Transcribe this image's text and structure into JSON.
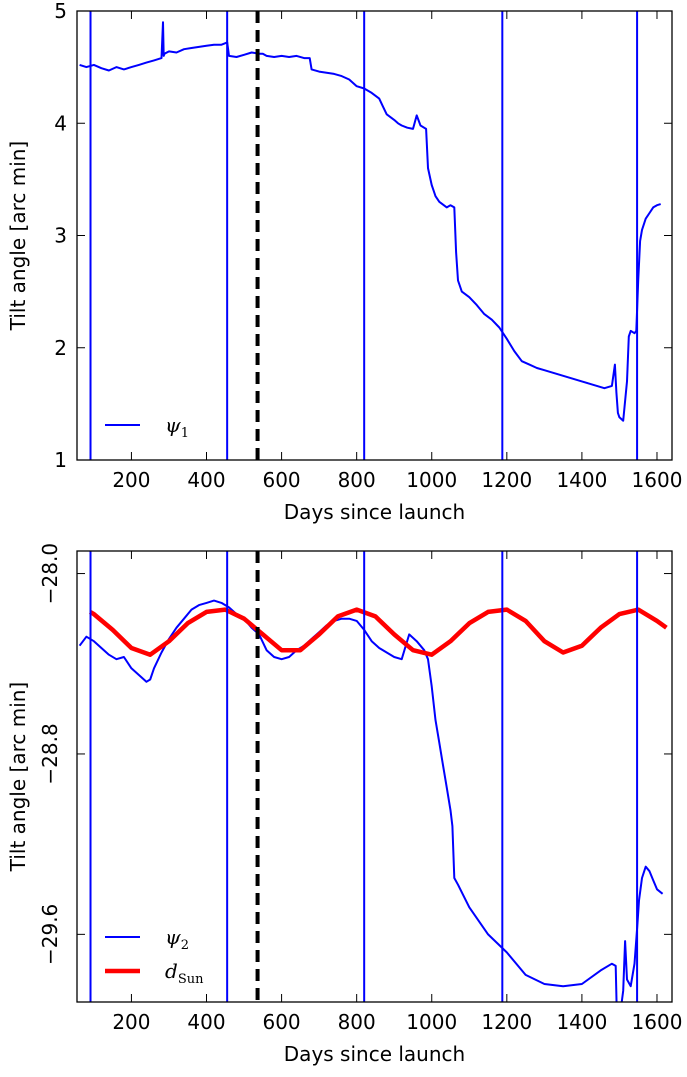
{
  "chart_data": [
    {
      "type": "line",
      "xlabel": "Days since launch",
      "ylabel": "Tilt angle [arc min]",
      "xlim": [
        55,
        1640
      ],
      "ylim": [
        1,
        5
      ],
      "xticks": [
        200,
        400,
        600,
        800,
        1000,
        1200,
        1400,
        1600
      ],
      "yticks": [
        1,
        2,
        3,
        4,
        5
      ],
      "xtick_labels": [
        "200",
        "400",
        "600",
        "800",
        "1000",
        "1200",
        "1400",
        "1600"
      ],
      "ytick_labels": [
        "1",
        "2",
        "3",
        "4",
        "5"
      ],
      "grid": false,
      "legend_position": "lower-left",
      "vertical_lines": {
        "blue": [
          91,
          455,
          820,
          1188,
          1547
        ],
        "dashed_black": [
          536
        ]
      },
      "series": [
        {
          "name": "ψ1",
          "color": "#0000ff",
          "x": [
            62,
            80,
            100,
            120,
            140,
            160,
            180,
            200,
            220,
            240,
            260,
            280,
            284,
            286,
            288,
            300,
            320,
            340,
            360,
            380,
            400,
            420,
            440,
            455,
            460,
            480,
            500,
            520,
            540,
            550,
            560,
            580,
            600,
            620,
            640,
            660,
            675,
            680,
            700,
            720,
            740,
            760,
            780,
            800,
            820,
            840,
            860,
            870,
            880,
            900,
            910,
            920,
            935,
            950,
            960,
            970,
            985,
            990,
            1000,
            1005,
            1010,
            1020,
            1040,
            1050,
            1060,
            1065,
            1070,
            1080,
            1100,
            1120,
            1140,
            1160,
            1180,
            1200,
            1220,
            1240,
            1260,
            1280,
            1300,
            1320,
            1340,
            1360,
            1380,
            1400,
            1420,
            1440,
            1460,
            1480,
            1488,
            1492,
            1496,
            1500,
            1510,
            1520,
            1525,
            1530,
            1540,
            1545,
            1550,
            1555,
            1560,
            1570,
            1580,
            1590,
            1600,
            1610
          ],
          "values": [
            4.52,
            4.5,
            4.52,
            4.49,
            4.47,
            4.5,
            4.48,
            4.5,
            4.52,
            4.54,
            4.56,
            4.58,
            4.9,
            4.6,
            4.62,
            4.64,
            4.63,
            4.66,
            4.67,
            4.68,
            4.69,
            4.7,
            4.7,
            4.72,
            4.6,
            4.59,
            4.61,
            4.63,
            4.62,
            4.62,
            4.6,
            4.59,
            4.6,
            4.59,
            4.6,
            4.58,
            4.58,
            4.48,
            4.46,
            4.45,
            4.44,
            4.42,
            4.39,
            4.33,
            4.31,
            4.27,
            4.22,
            4.15,
            4.08,
            4.03,
            4.0,
            3.98,
            3.96,
            3.95,
            4.07,
            3.98,
            3.95,
            3.6,
            3.45,
            3.4,
            3.35,
            3.3,
            3.25,
            3.27,
            3.25,
            2.85,
            2.6,
            2.5,
            2.45,
            2.38,
            2.3,
            2.25,
            2.18,
            2.08,
            1.97,
            1.88,
            1.85,
            1.82,
            1.8,
            1.78,
            1.76,
            1.74,
            1.72,
            1.7,
            1.68,
            1.66,
            1.64,
            1.66,
            1.85,
            1.6,
            1.42,
            1.38,
            1.35,
            1.7,
            2.1,
            2.15,
            2.13,
            2.15,
            2.6,
            2.95,
            3.05,
            3.15,
            3.2,
            3.25,
            3.27,
            3.28
          ]
        }
      ]
    },
    {
      "type": "line",
      "xlabel": "Days since launch",
      "ylabel": "Tilt angle [arc min]",
      "xlim": [
        55,
        1640
      ],
      "ylim": [
        -29.9,
        -27.9
      ],
      "xticks": [
        200,
        400,
        600,
        800,
        1000,
        1200,
        1400,
        1600
      ],
      "yticks": [
        -28.0,
        -28.8,
        -29.6
      ],
      "xtick_labels": [
        "200",
        "400",
        "600",
        "800",
        "1000",
        "1200",
        "1400",
        "1600"
      ],
      "ytick_labels": [
        "−28.0",
        "−28.8",
        "−29.6"
      ],
      "grid": false,
      "legend_position": "lower-left",
      "vertical_lines": {
        "blue": [
          91,
          455,
          820,
          1188,
          1547
        ],
        "dashed_black": [
          536
        ]
      },
      "series": [
        {
          "name": "ψ2",
          "color": "#0000ff",
          "x": [
            62,
            80,
            100,
            120,
            140,
            160,
            180,
            200,
            220,
            240,
            250,
            260,
            280,
            300,
            320,
            340,
            360,
            380,
            400,
            420,
            440,
            460,
            480,
            500,
            520,
            540,
            560,
            580,
            600,
            620,
            640,
            660,
            680,
            700,
            720,
            740,
            760,
            780,
            800,
            820,
            840,
            860,
            880,
            900,
            920,
            940,
            960,
            980,
            990,
            1000,
            1010,
            1020,
            1030,
            1040,
            1050,
            1055,
            1060,
            1070,
            1100,
            1150,
            1200,
            1250,
            1300,
            1350,
            1400,
            1450,
            1480,
            1490,
            1493,
            1500,
            1510,
            1515,
            1520,
            1530,
            1540,
            1548,
            1552,
            1560,
            1570,
            1580,
            1590,
            1600,
            1615
          ],
          "values": [
            -28.32,
            -28.28,
            -28.3,
            -28.33,
            -28.36,
            -28.38,
            -28.37,
            -28.42,
            -28.45,
            -28.48,
            -28.47,
            -28.42,
            -28.35,
            -28.29,
            -28.24,
            -28.2,
            -28.16,
            -28.14,
            -28.13,
            -28.12,
            -28.13,
            -28.15,
            -28.18,
            -28.2,
            -28.24,
            -28.27,
            -28.34,
            -28.37,
            -28.38,
            -28.37,
            -28.34,
            -28.32,
            -28.29,
            -28.26,
            -28.23,
            -28.21,
            -28.2,
            -28.2,
            -28.21,
            -28.25,
            -28.3,
            -28.33,
            -28.35,
            -28.37,
            -28.38,
            -28.27,
            -28.3,
            -28.34,
            -28.38,
            -28.5,
            -28.65,
            -28.75,
            -28.85,
            -28.95,
            -29.05,
            -29.12,
            -29.35,
            -29.38,
            -29.48,
            -29.6,
            -29.68,
            -29.78,
            -29.82,
            -29.83,
            -29.82,
            -29.76,
            -29.73,
            -29.74,
            -29.95,
            -29.98,
            -29.85,
            -29.63,
            -29.8,
            -29.83,
            -29.73,
            -29.55,
            -29.45,
            -29.35,
            -29.3,
            -29.32,
            -29.36,
            -29.4,
            -29.42
          ]
        },
        {
          "name": "dSun",
          "color": "#ff0000",
          "x": [
            90,
            100,
            150,
            200,
            250,
            300,
            350,
            400,
            450,
            500,
            550,
            600,
            650,
            700,
            750,
            800,
            850,
            900,
            950,
            1000,
            1050,
            1100,
            1150,
            1200,
            1250,
            1300,
            1350,
            1400,
            1450,
            1500,
            1550,
            1600,
            1625
          ],
          "values": [
            -28.17,
            -28.18,
            -28.25,
            -28.33,
            -28.36,
            -28.3,
            -28.22,
            -28.17,
            -28.16,
            -28.2,
            -28.27,
            -28.34,
            -28.34,
            -28.27,
            -28.19,
            -28.16,
            -28.19,
            -28.27,
            -28.34,
            -28.36,
            -28.3,
            -28.22,
            -28.17,
            -28.16,
            -28.21,
            -28.3,
            -28.35,
            -28.32,
            -28.24,
            -28.18,
            -28.16,
            -28.21,
            -28.24
          ]
        }
      ]
    }
  ]
}
